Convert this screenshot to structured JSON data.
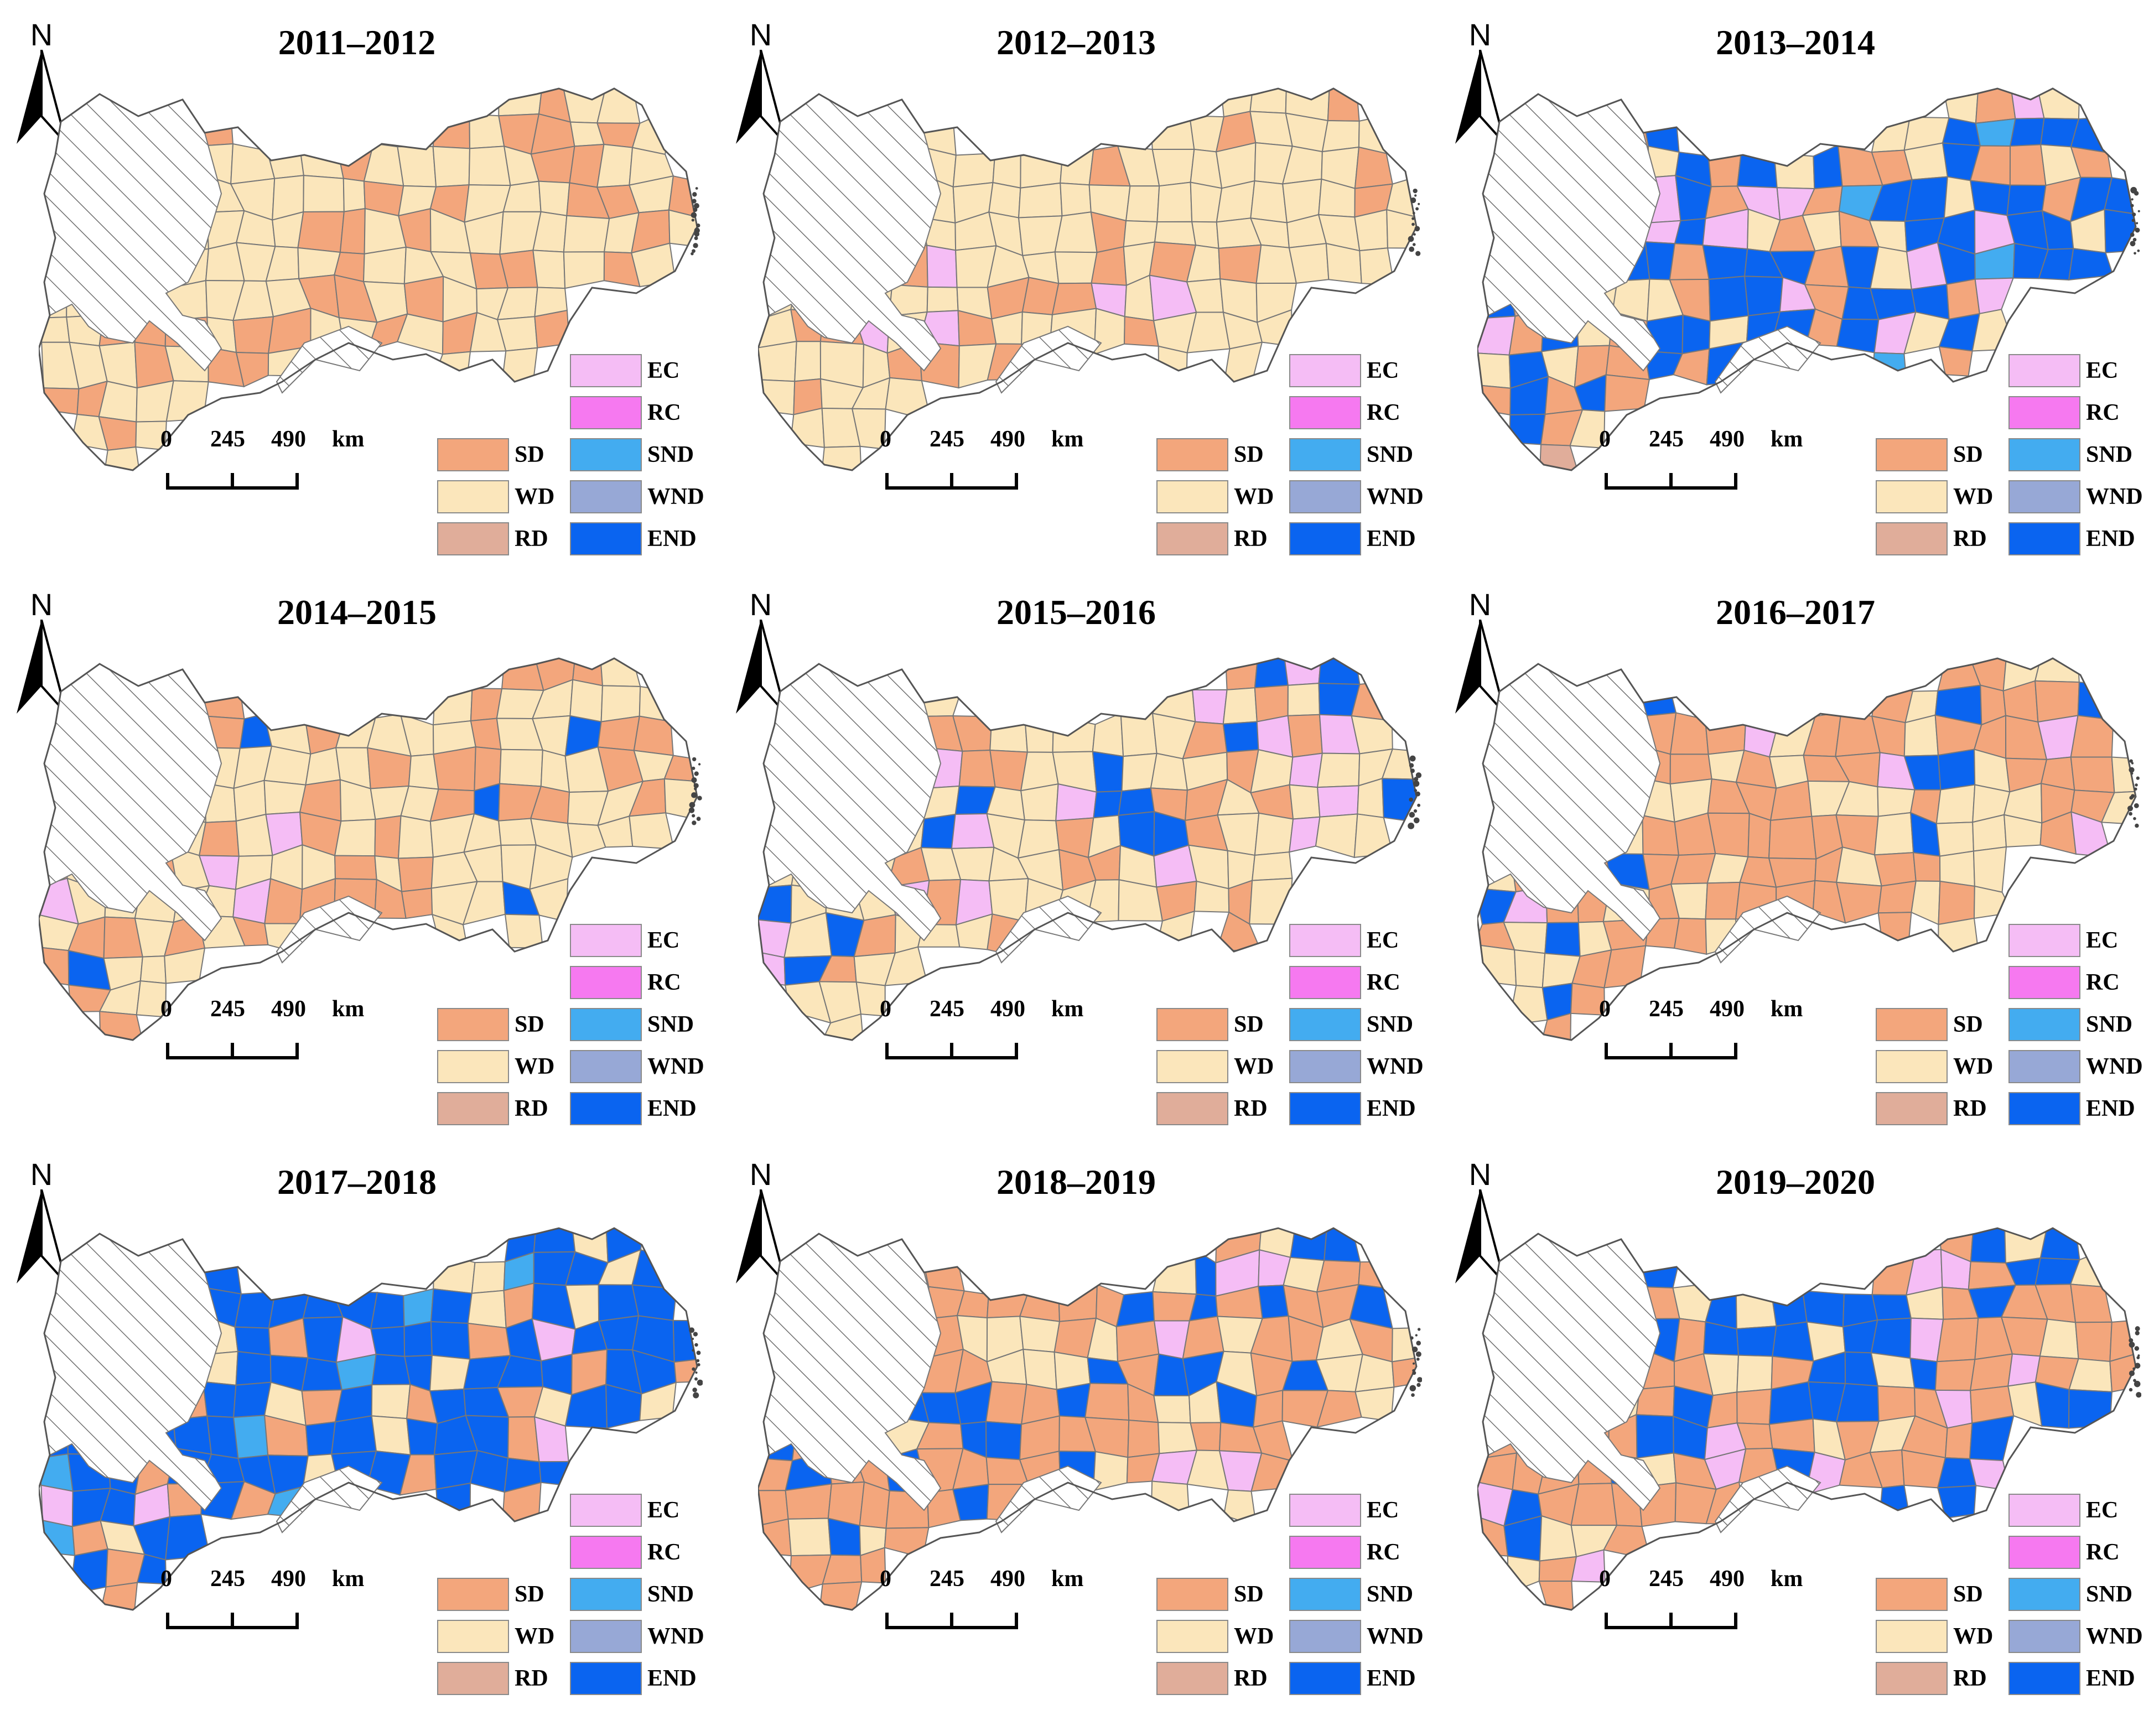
{
  "panels": [
    {
      "title": "2011–2012",
      "profile": {
        "SD": 0.38,
        "WD": 0.62
      }
    },
    {
      "title": "2012–2013",
      "profile": {
        "SD": 0.18,
        "WD": 0.79,
        "EC": 0.03
      }
    },
    {
      "title": "2013–2014",
      "profile": {
        "END": 0.38,
        "SD": 0.22,
        "WD": 0.22,
        "EC": 0.12,
        "SND": 0.04,
        "RD": 0.02
      }
    },
    {
      "title": "2014–2015",
      "profile": {
        "WD": 0.62,
        "SD": 0.27,
        "EC": 0.06,
        "END": 0.05
      }
    },
    {
      "title": "2015–2016",
      "profile": {
        "WD": 0.55,
        "SD": 0.22,
        "EC": 0.12,
        "END": 0.11
      }
    },
    {
      "title": "2016–2017",
      "profile": {
        "SD": 0.52,
        "WD": 0.37,
        "EC": 0.05,
        "END": 0.06
      }
    },
    {
      "title": "2017–2018",
      "profile": {
        "END": 0.62,
        "SD": 0.14,
        "WD": 0.12,
        "EC": 0.1,
        "SND": 0.02
      }
    },
    {
      "title": "2018–2019",
      "profile": {
        "SD": 0.56,
        "WD": 0.22,
        "END": 0.14,
        "EC": 0.08
      }
    },
    {
      "title": "2019–2020",
      "profile": {
        "SD": 0.4,
        "END": 0.38,
        "WD": 0.14,
        "EC": 0.08
      }
    }
  ],
  "north_label": "N",
  "scale": {
    "zero": "0",
    "mid": "245",
    "end": "490",
    "unit": "km"
  },
  "legend": [
    {
      "code": "EC",
      "color": "#f5bdf5",
      "column": "right"
    },
    {
      "code": "RC",
      "color": "#f679f0",
      "column": "right"
    },
    {
      "code": "SND",
      "color": "#43acf0",
      "column": "right"
    },
    {
      "code": "WND",
      "color": "#97a8d6",
      "column": "right"
    },
    {
      "code": "END",
      "color": "#0a64f0",
      "column": "right"
    },
    {
      "code": "SD",
      "color": "#f3a67c",
      "column": "left"
    },
    {
      "code": "WD",
      "color": "#fbe6bb",
      "column": "left"
    },
    {
      "code": "RD",
      "color": "#e0ad9a",
      "column": "left"
    }
  ],
  "hatch_color": "#6e6e6e",
  "boundary_color": "#777777"
}
